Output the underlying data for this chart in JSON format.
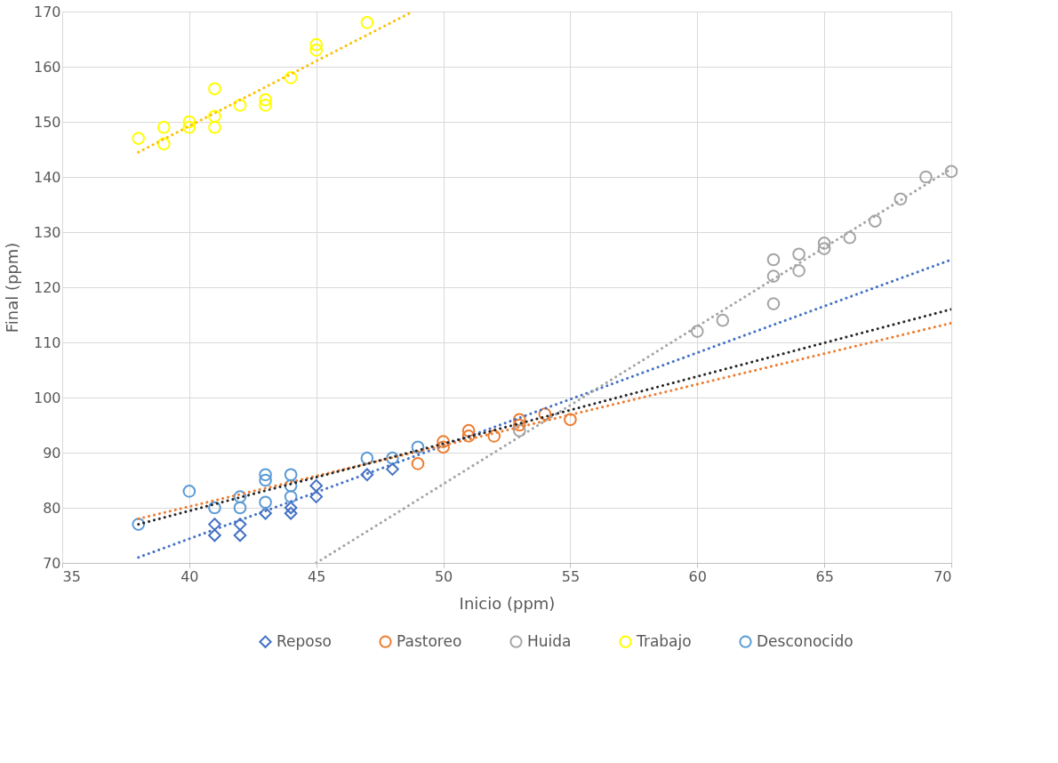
{
  "chart_data": {
    "type": "scatter",
    "xlabel": "Inicio (ppm)",
    "ylabel": "Final (ppm)",
    "xlim": [
      35,
      70
    ],
    "ylim": [
      70,
      170
    ],
    "xticks": [
      35,
      40,
      45,
      50,
      55,
      60,
      65,
      70
    ],
    "yticks": [
      70,
      80,
      90,
      100,
      110,
      120,
      130,
      140,
      150,
      160,
      170
    ],
    "grid": true,
    "legend": "bottom",
    "series": [
      {
        "name": "Reposo",
        "color": "#4472c4",
        "marker": "diamond",
        "x": [
          41,
          41,
          42,
          42,
          43,
          44,
          44,
          45,
          45,
          47,
          48
        ],
        "values": [
          77,
          75,
          77,
          75,
          79,
          80,
          79,
          84,
          82,
          86,
          87
        ]
      },
      {
        "name": "Pastoreo",
        "color": "#ed7d31",
        "marker": "circle",
        "x": [
          49,
          50,
          50,
          51,
          51,
          52,
          53,
          53,
          54,
          55
        ],
        "values": [
          88,
          92,
          91,
          94,
          93,
          93,
          96,
          95,
          97,
          96
        ]
      },
      {
        "name": "Huida",
        "color": "#a5a5a5",
        "marker": "circle",
        "x": [
          53,
          60,
          61,
          63,
          63,
          63,
          64,
          64,
          65,
          65,
          66,
          67,
          68,
          69,
          70
        ],
        "values": [
          94,
          112,
          114,
          125,
          122,
          117,
          126,
          123,
          128,
          127,
          129,
          132,
          136,
          140,
          141
        ]
      },
      {
        "name": "Trabajo",
        "color": "#ffff00",
        "marker": "circle",
        "x": [
          38,
          39,
          39,
          40,
          40,
          41,
          41,
          41,
          42,
          43,
          43,
          44,
          45,
          45,
          47
        ],
        "values": [
          147,
          149,
          146,
          150,
          149,
          156,
          151,
          149,
          153,
          154,
          153,
          158,
          164,
          163,
          168
        ]
      },
      {
        "name": "Desconocido",
        "color": "#5b9bd5",
        "marker": "circle",
        "x": [
          38,
          40,
          41,
          42,
          42,
          43,
          43,
          43,
          44,
          44,
          44,
          47,
          48,
          49
        ],
        "values": [
          77,
          83,
          80,
          82,
          80,
          86,
          85,
          81,
          86,
          84,
          82,
          89,
          89,
          91
        ]
      },
      {
        "type": "line",
        "color": "#4472c4",
        "line_style": "dotted",
        "x": [
          38,
          70
        ],
        "values": [
          71,
          125
        ]
      },
      {
        "type": "line",
        "color": "#ed7d31",
        "line_style": "dotted",
        "x": [
          38,
          70
        ],
        "values": [
          78,
          113.5
        ]
      },
      {
        "type": "line",
        "color": "#a5a5a5",
        "line_style": "dotted",
        "x": [
          45,
          70
        ],
        "values": [
          70,
          141.5
        ]
      },
      {
        "type": "line",
        "color": "#ffc000",
        "line_style": "dotted",
        "x": [
          38,
          48.8
        ],
        "values": [
          144.5,
          170
        ]
      },
      {
        "type": "line",
        "color": "#262626",
        "line_style": "dotted",
        "x": [
          38,
          70
        ],
        "values": [
          77,
          116
        ]
      }
    ]
  }
}
